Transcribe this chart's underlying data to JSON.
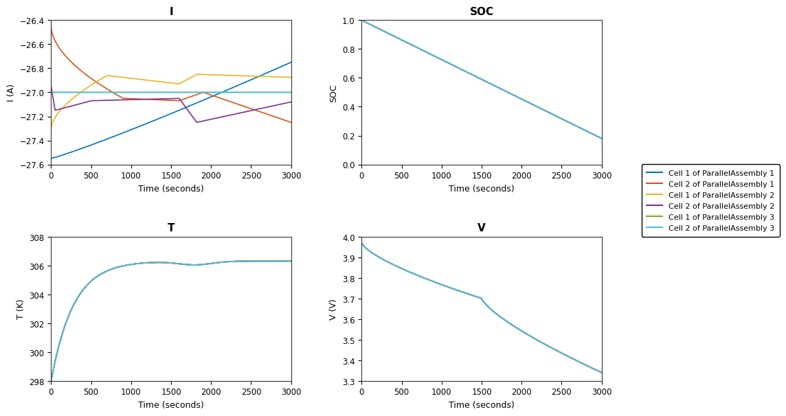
{
  "title_I": "I",
  "title_SOC": "SOC",
  "title_T": "T",
  "title_V": "V",
  "xlabel": "Time (seconds)",
  "ylabel_I": "I (A)",
  "ylabel_SOC": "SOC",
  "ylabel_T": "T (K)",
  "ylabel_V": "V (V)",
  "xlim": [
    0,
    3000
  ],
  "ylim_I": [
    -27.6,
    -26.4
  ],
  "ylim_SOC": [
    0,
    1
  ],
  "ylim_T": [
    298,
    308
  ],
  "ylim_V": [
    3.3,
    4.0
  ],
  "colors": [
    "#0072BD",
    "#D95319",
    "#EDB120",
    "#7E2F8E",
    "#77AC30",
    "#4DBEEE"
  ],
  "legend_labels": [
    "Cell 1 of ParallelAssembly 1",
    "Cell 2 of ParallelAssembly 1",
    "Cell 1 of ParallelAssembly 2",
    "Cell 2 of ParallelAssembly 2",
    "Cell 1 of ParallelAssembly 3",
    "Cell 2 of ParallelAssembly 3"
  ],
  "background_color": "#ffffff"
}
